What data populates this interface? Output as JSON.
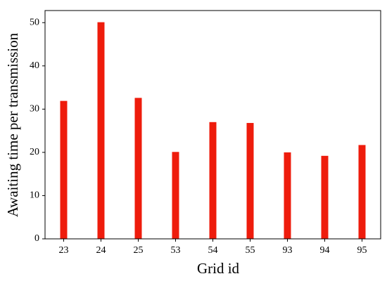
{
  "chart_data": {
    "type": "bar",
    "xlabel": "Grid id",
    "ylabel": "Awaiting time per transmission",
    "categories": [
      "23",
      "24",
      "25",
      "53",
      "54",
      "55",
      "93",
      "94",
      "95"
    ],
    "values": [
      31.9,
      50.1,
      32.6,
      20.1,
      27.0,
      26.8,
      20.0,
      19.2,
      21.7
    ],
    "color": "#ee1c0c",
    "ylim": [
      0,
      52.8
    ],
    "yticks": [
      0,
      10,
      20,
      30,
      40,
      50
    ],
    "grid": false
  }
}
